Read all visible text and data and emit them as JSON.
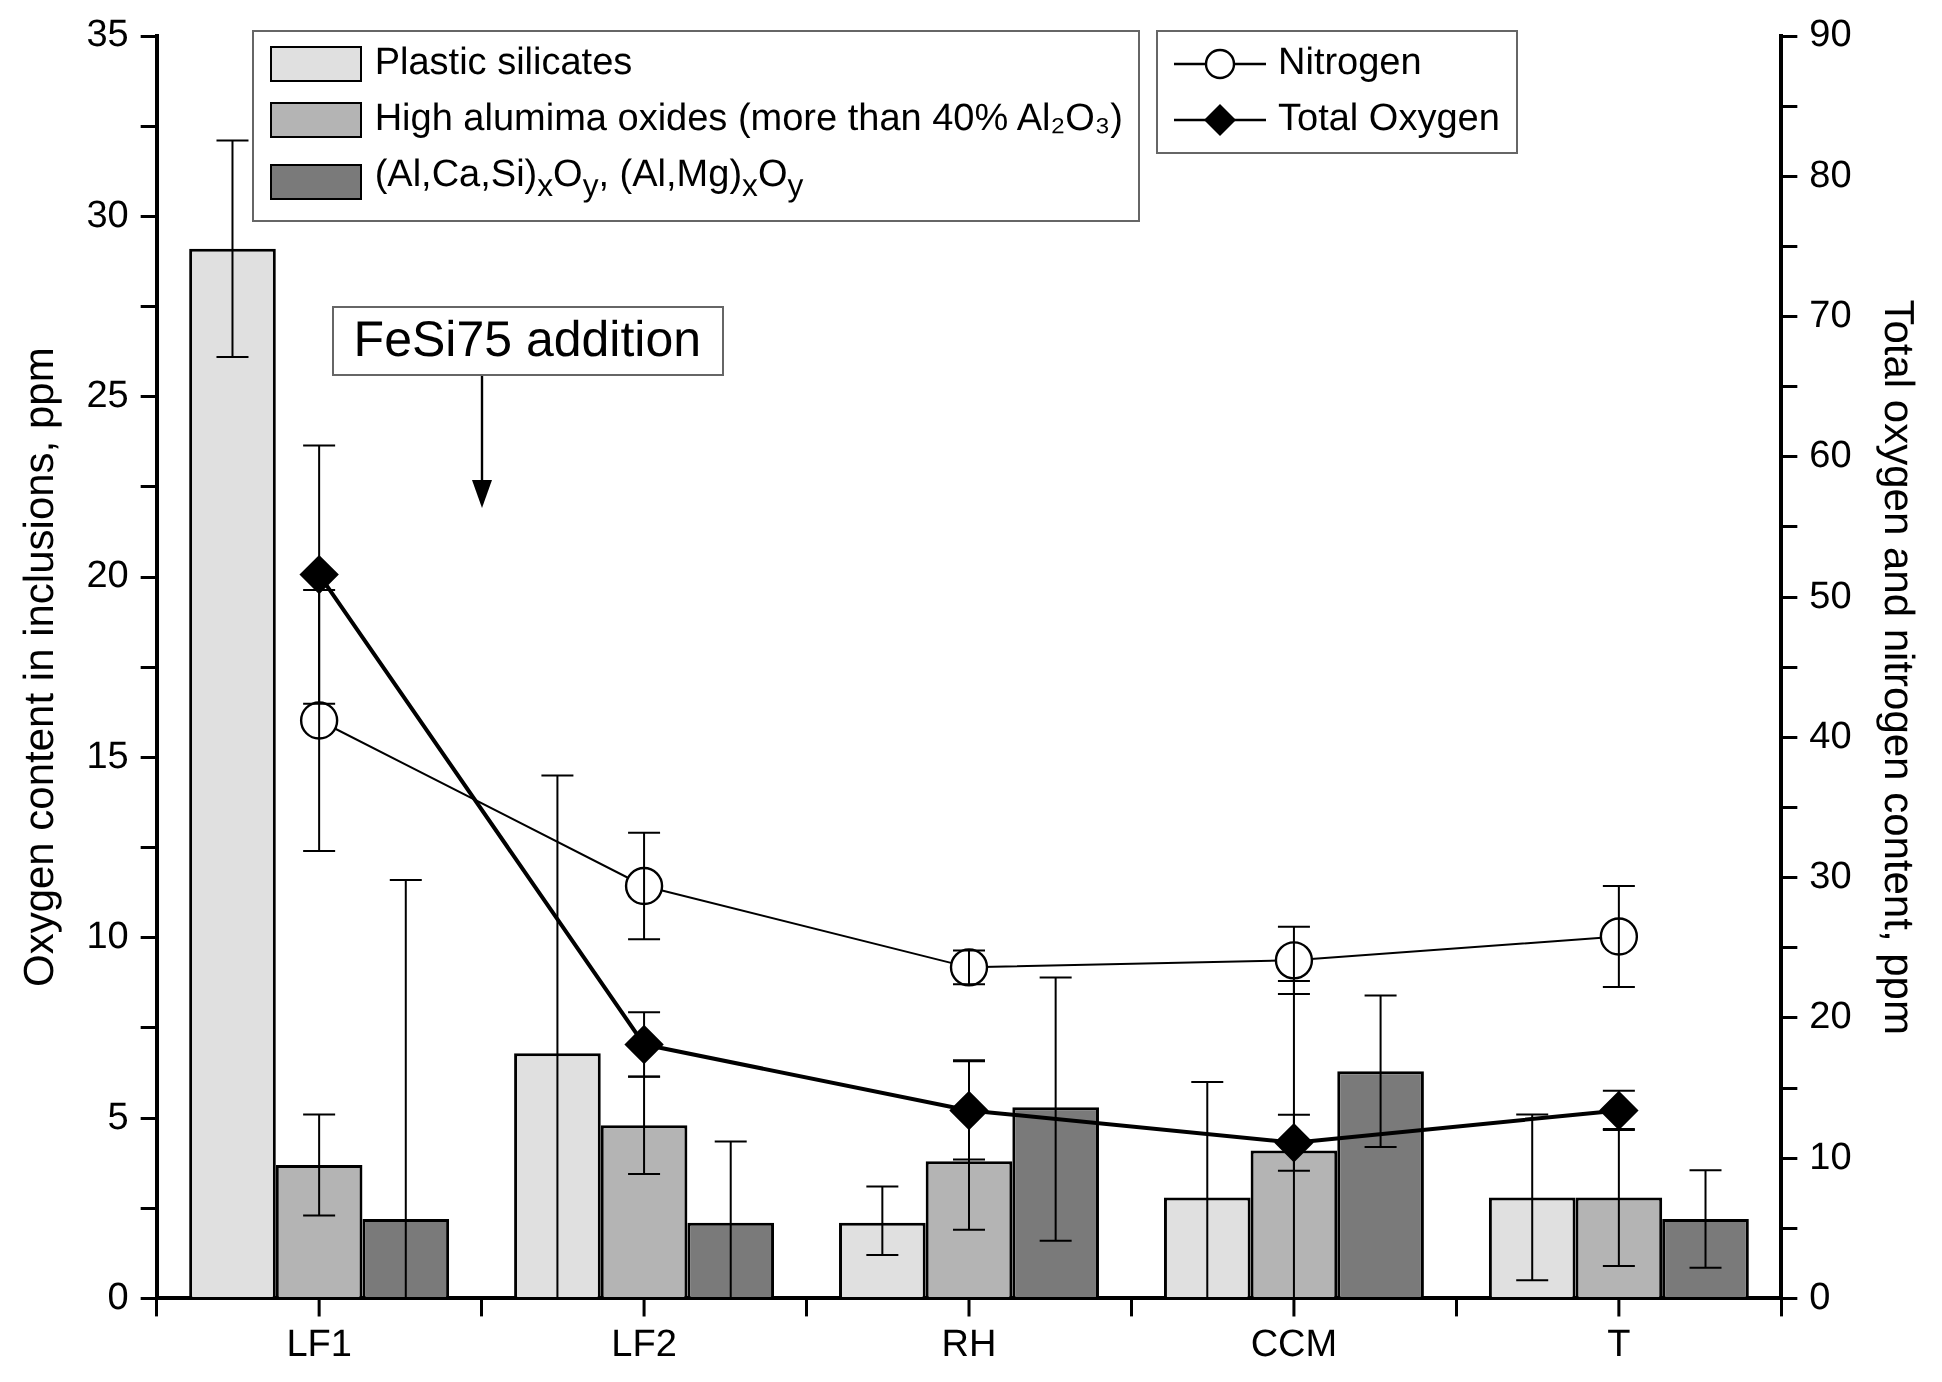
{
  "chart_data": {
    "type": "bar",
    "categories": [
      "LF1",
      "LF2",
      "RH",
      "CCM",
      "T"
    ],
    "ylabel": "Oxygen content in inclusions, ppm",
    "y2label": "Total oxygen and nitrogen content, ppm",
    "ylim": [
      0,
      35
    ],
    "yticks": [
      0,
      {
        "value": 2.5,
        "label": null
      },
      5,
      {
        "value": 7.5,
        "label": null
      },
      10,
      {
        "value": 12.5,
        "label": null
      },
      15,
      {
        "value": 17.5,
        "label": null
      },
      20,
      {
        "value": 22.5,
        "label": null
      },
      25,
      {
        "value": 27.5,
        "label": null
      },
      30,
      {
        "value": 32.5,
        "label": null
      },
      35
    ],
    "y2lim": [
      0,
      90
    ],
    "y2ticks": [
      0,
      {
        "value": 5,
        "label": null
      },
      10,
      {
        "value": 15,
        "label": null
      },
      20,
      {
        "value": 25,
        "label": null
      },
      30,
      {
        "value": 35,
        "label": null
      },
      40,
      {
        "value": 45,
        "label": null
      },
      50,
      {
        "value": 55,
        "label": null
      },
      60,
      {
        "value": 65,
        "label": null
      },
      70,
      {
        "value": 75,
        "label": null
      },
      80,
      {
        "value": 85,
        "label": null
      },
      90
    ],
    "legend": "top",
    "grid": false,
    "annotations": [
      "FeSi75 addition"
    ],
    "series": [
      {
        "name": "Plastic silicates",
        "color": "#e0e0e0",
        "values": [
          29.1,
          6.8,
          2.1,
          2.8,
          2.8
        ],
        "errors": [
          3,
          [
            0,
            14.5
          ],
          [
            1.2,
            3.1
          ],
          [
            0,
            6.0
          ],
          [
            0.5,
            5.1
          ]
        ]
      },
      {
        "name": "High alumima oxides (more than 40% Al₂O₃)",
        "color": "#b4b4b4",
        "values": [
          3.7,
          4.8,
          3.8,
          4.1,
          2.8
        ],
        "errors": [
          1.4,
          1.35,
          [
            1.9,
            6.6
          ],
          [
            0,
            8.8
          ],
          1.9
        ]
      },
      {
        "name": "(Al,Ca,Si)$_{x}$O$_{y}$, (Al,Mg)$_{x}$O$_{y}$",
        "color": "#7a7a7a",
        "values": [
          2.2,
          2.1,
          5.3,
          6.3,
          2.2
        ],
        "errors": [
          [
            0,
            11.6
          ],
          [
            0,
            4.35
          ],
          [
            1.6,
            8.9
          ],
          2.1,
          1.35
        ]
      },
      {
        "name": "Nitrogen",
        "type": "line",
        "axis": "y2",
        "marker": "circle",
        "color": "#000000",
        "values": [
          41.2,
          29.4,
          23.6,
          24.1,
          25.8
        ],
        "errors": [
          9.3,
          3.8,
          1.2,
          2.4,
          3.6
        ]
      },
      {
        "name": "Total Oxygen",
        "type": "line",
        "axis": "y2",
        "marker": "diamond",
        "color": "#000000",
        "values": [
          51.6,
          18.1,
          13.4,
          11.1,
          13.4
        ],
        "errors": [
          9.2,
          2.3,
          3.5,
          2,
          1.4
        ]
      }
    ]
  }
}
